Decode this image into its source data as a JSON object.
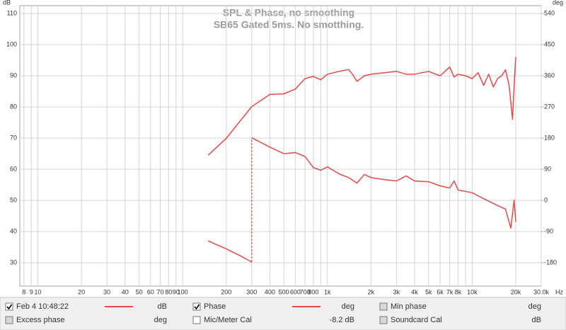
{
  "chart_data": {
    "type": "line",
    "title": "SPL & Phase, no smoothing",
    "subtitle": "SB65 Gated 5ms. No smotthing.",
    "y_axis_label": "dB",
    "y2_axis_label": "deg",
    "x_axis_label": "Hz",
    "log_x": true,
    "grid": true,
    "xlim": [
      7.5,
      30000
    ],
    "xticks": [
      8,
      9,
      10,
      20,
      30,
      40,
      50,
      60,
      70,
      80,
      90,
      100,
      200,
      300,
      400,
      500,
      600,
      700,
      800,
      {
        "value": 1000,
        "label": "1k"
      },
      {
        "value": 2000,
        "label": "2k"
      },
      {
        "value": 3000,
        "label": "3k"
      },
      {
        "value": 4000,
        "label": "4k"
      },
      {
        "value": 5000,
        "label": "5k"
      },
      {
        "value": 6000,
        "label": "6k"
      },
      {
        "value": 7000,
        "label": "7k"
      },
      {
        "value": 8000,
        "label": "8k"
      },
      {
        "value": 10000,
        "label": "10k"
      },
      {
        "value": 20000,
        "label": "20k"
      },
      {
        "value": 30000,
        "label": "30.0k"
      }
    ],
    "minor_xticks": [
      900,
      9000
    ],
    "ylim": [
      22.5,
      112.5
    ],
    "yticks": [
      30,
      40,
      50,
      60,
      70,
      80,
      90,
      100,
      110
    ],
    "y2lim": [
      -247.5,
      562.5
    ],
    "y2ticks": [
      -180,
      -90,
      0,
      90,
      180,
      270,
      360,
      450,
      540
    ],
    "series": [
      {
        "name": "Feb 4 10:48:22",
        "unit": "dB",
        "checked": true,
        "color": "#e84848",
        "x": [
          150,
          200,
          300,
          400,
          500,
          600,
          700,
          800,
          900,
          1000,
          1200,
          1400,
          1500,
          1600,
          1800,
          2000,
          2500,
          3000,
          3500,
          4000,
          5000,
          6000,
          7000,
          7500,
          8000,
          9000,
          10000,
          11000,
          12000,
          13000,
          14000,
          15000,
          16000,
          17000,
          18000,
          19000,
          19500,
          20000
        ],
        "values": [
          64.5,
          69.9,
          80.1,
          84,
          84.2,
          85.7,
          89.1,
          89.8,
          88.7,
          90.5,
          91.4,
          92,
          90.3,
          88.2,
          90,
          90.5,
          91,
          91.4,
          90.5,
          90.5,
          91.4,
          90,
          92.8,
          89.6,
          90.5,
          90,
          89.1,
          91,
          86.9,
          90.5,
          86.4,
          89.1,
          90,
          91.9,
          86.9,
          76,
          86.9,
          96
        ]
      },
      {
        "name": "Phase",
        "unit": "deg",
        "checked": true,
        "color": "#e84848",
        "axis": "y2",
        "x": [
          150,
          200,
          250,
          300,
          300,
          300,
          400,
          500,
          600,
          700,
          800,
          900,
          1000,
          1200,
          1400,
          1600,
          1800,
          2000,
          2500,
          3000,
          3500,
          4000,
          5000,
          6000,
          7000,
          7500,
          8000,
          10000,
          12000,
          15000,
          17000,
          18500,
          19500,
          20000
        ],
        "values": [
          -117,
          -140,
          -160,
          -178,
          null,
          181,
          154,
          135,
          138,
          127,
          95,
          87,
          97,
          77,
          66,
          50,
          75,
          66,
          60,
          56,
          71,
          56,
          54,
          42,
          36,
          56,
          30,
          22,
          5,
          -15,
          -25,
          -80,
          1,
          -62
        ]
      }
    ],
    "other_traces": [
      {
        "name": "Min phase",
        "unit": "deg",
        "checked": false,
        "enabled": false
      },
      {
        "name": "Excess phase",
        "unit": "deg",
        "checked": false,
        "enabled": false
      },
      {
        "name": "Mic/Meter Cal",
        "unit": "-8.2 dB",
        "checked": false,
        "enabled": true
      },
      {
        "name": "Soundcard Cal",
        "unit": "dB",
        "checked": false,
        "enabled": false
      }
    ]
  }
}
